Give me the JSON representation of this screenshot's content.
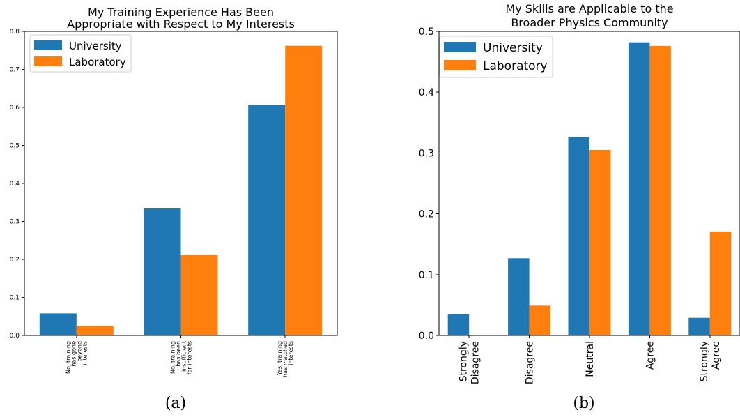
{
  "chart_data": [
    {
      "type": "bar",
      "title": [
        "My Training Experience Has Been",
        "Appropriate with Respect to My Interests"
      ],
      "caption": "(a)",
      "categories": [
        [
          "No, training",
          "has gone",
          "beyond",
          "interests"
        ],
        [
          "No, training",
          "has been",
          "insufficient",
          "for interests"
        ],
        [
          "Yes, training",
          "has matched",
          "interests"
        ]
      ],
      "series": [
        {
          "name": "University",
          "values": [
            0.058,
            0.334,
            0.606
          ]
        },
        {
          "name": "Laboratory",
          "values": [
            0.025,
            0.212,
            0.762
          ]
        }
      ],
      "ylim": [
        0,
        0.8
      ],
      "yticks": [
        "0.0",
        "0.1",
        "0.2",
        "0.3",
        "0.4",
        "0.5",
        "0.6",
        "0.7",
        "0.8"
      ],
      "legend": "top-left",
      "grid": false
    },
    {
      "type": "bar",
      "title": [
        "My Skills are Applicable to the",
        "Broader Physics Community"
      ],
      "caption": "(b)",
      "categories": [
        [
          "Strongly",
          "Disagree"
        ],
        [
          "Disagree"
        ],
        [
          "Neutral"
        ],
        [
          "Agree"
        ],
        [
          "Strongly",
          "Agree"
        ]
      ],
      "series": [
        {
          "name": "University",
          "values": [
            0.035,
            0.127,
            0.326,
            0.482,
            0.029
          ]
        },
        {
          "name": "Laboratory",
          "values": [
            0.0,
            0.049,
            0.305,
            0.476,
            0.171
          ]
        }
      ],
      "ylim": [
        0,
        0.5
      ],
      "yticks": [
        "0.0",
        "0.1",
        "0.2",
        "0.3",
        "0.4",
        "0.5"
      ],
      "legend": "top-left",
      "grid": false
    }
  ],
  "colors": {
    "University": "#1f77b4",
    "Laboratory": "#ff7f0e"
  }
}
